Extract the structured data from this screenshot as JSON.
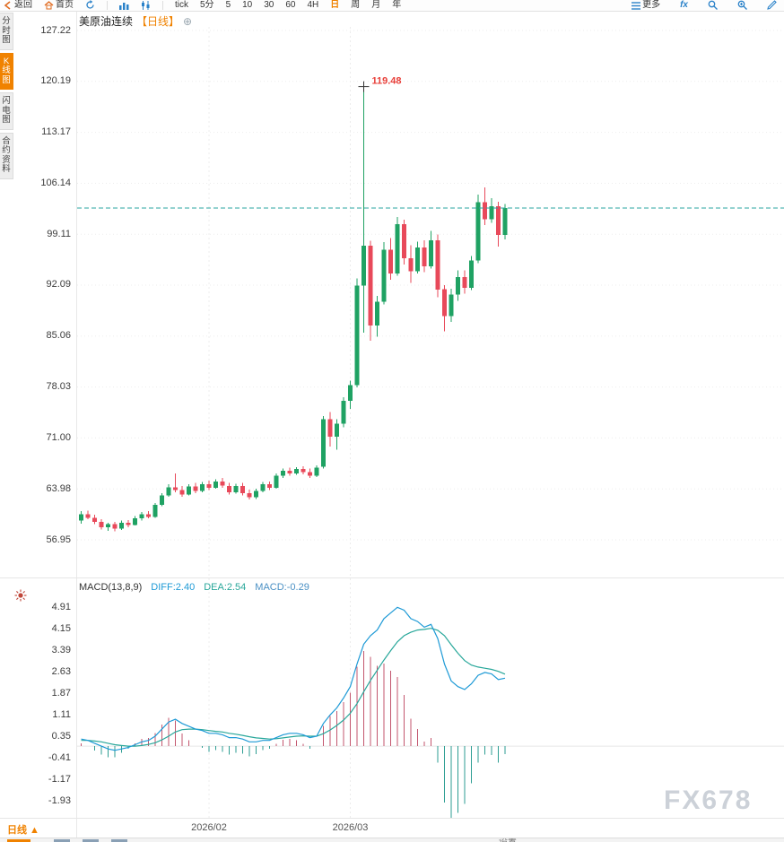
{
  "toolbar": {
    "items": [
      {
        "id": "back",
        "icon": "back-icon",
        "label": "返回"
      },
      {
        "id": "home",
        "icon": "home-icon",
        "label": "首页"
      },
      {
        "id": "refresh",
        "icon": "refresh-icon",
        "label": "",
        "divider_after": true
      },
      {
        "id": "bar-chart",
        "icon": "bar-chart-icon",
        "label": ""
      },
      {
        "id": "candle-chart",
        "icon": "candle-chart-icon",
        "label": "",
        "divider_after": true
      },
      {
        "id": "tick",
        "label": "tick"
      },
      {
        "id": "min5",
        "label": "5分"
      },
      {
        "id": "m5",
        "label": "5"
      },
      {
        "id": "m10",
        "label": "10"
      },
      {
        "id": "m30",
        "label": "30"
      },
      {
        "id": "m60",
        "label": "60"
      },
      {
        "id": "h4",
        "label": "4H"
      },
      {
        "id": "day",
        "label": "日",
        "active": true
      },
      {
        "id": "week",
        "label": "周"
      },
      {
        "id": "month",
        "label": "月"
      },
      {
        "id": "year",
        "label": "年"
      },
      {
        "id": "more",
        "icon": "menu-icon",
        "label": "更多"
      },
      {
        "id": "fx",
        "label": "fx"
      },
      {
        "id": "search",
        "icon": "search-icon",
        "label": ""
      },
      {
        "id": "zoom",
        "icon": "zoom-icon",
        "label": ""
      },
      {
        "id": "draw",
        "icon": "pen-icon",
        "label": ""
      }
    ]
  },
  "sidebar": {
    "items": [
      {
        "id": "time-chart",
        "label": "分时图",
        "active": false
      },
      {
        "id": "kline-chart",
        "label": "K线图",
        "active": true
      },
      {
        "id": "flash-chart",
        "label": "闪电图",
        "active": false
      },
      {
        "id": "contract-info",
        "label": "合约资料",
        "active": false
      }
    ]
  },
  "chart_data": {
    "type": "candlestick",
    "title": "美原油连续",
    "period_tag": "【日线】",
    "y_ticks": [
      "127.22",
      "120.19",
      "113.17",
      "106.14",
      "99.11",
      "92.09",
      "85.06",
      "78.03",
      "71.00",
      "63.98",
      "56.95"
    ],
    "x_labels": [
      {
        "text": "2026/02",
        "index": 19
      },
      {
        "text": "2026/03",
        "index": 40
      }
    ],
    "current_price_line": 102.72,
    "high_annotation": {
      "text": "119.48",
      "index": 42
    },
    "candles_ohlc": [
      [
        59.6,
        60.9,
        59.2,
        60.5
      ],
      [
        60.5,
        61.0,
        59.8,
        60.0
      ],
      [
        60.0,
        60.4,
        59.1,
        59.4
      ],
      [
        59.4,
        59.8,
        58.4,
        58.7
      ],
      [
        58.7,
        59.3,
        58.2,
        59.1
      ],
      [
        59.1,
        59.4,
        58.1,
        58.5
      ],
      [
        58.5,
        59.6,
        58.3,
        59.3
      ],
      [
        59.3,
        59.7,
        58.7,
        59.0
      ],
      [
        59.0,
        60.2,
        58.9,
        59.9
      ],
      [
        59.9,
        60.8,
        59.6,
        60.5
      ],
      [
        60.5,
        60.9,
        59.9,
        60.1
      ],
      [
        60.1,
        62.0,
        60.0,
        61.8
      ],
      [
        61.8,
        63.4,
        61.6,
        63.1
      ],
      [
        63.1,
        64.6,
        62.9,
        64.2
      ],
      [
        64.2,
        66.1,
        63.5,
        63.8
      ],
      [
        63.8,
        64.4,
        62.9,
        63.2
      ],
      [
        63.2,
        64.6,
        63.1,
        64.3
      ],
      [
        64.3,
        64.8,
        63.4,
        63.7
      ],
      [
        63.7,
        64.9,
        63.5,
        64.6
      ],
      [
        64.6,
        65.1,
        63.8,
        64.1
      ],
      [
        64.1,
        65.3,
        64.0,
        65.0
      ],
      [
        65.0,
        65.5,
        64.1,
        64.4
      ],
      [
        64.4,
        64.8,
        63.2,
        63.5
      ],
      [
        63.5,
        64.7,
        63.3,
        64.4
      ],
      [
        64.4,
        64.8,
        63.1,
        63.4
      ],
      [
        63.4,
        63.9,
        62.5,
        62.8
      ],
      [
        62.8,
        64.0,
        62.6,
        63.7
      ],
      [
        63.7,
        64.9,
        63.5,
        64.6
      ],
      [
        64.6,
        65.0,
        63.8,
        64.1
      ],
      [
        64.1,
        66.1,
        64.0,
        65.8
      ],
      [
        65.8,
        66.8,
        65.5,
        66.5
      ],
      [
        66.5,
        66.9,
        65.8,
        66.1
      ],
      [
        66.1,
        67.0,
        65.9,
        66.7
      ],
      [
        66.7,
        67.1,
        66.0,
        66.3
      ],
      [
        66.3,
        66.8,
        65.5,
        65.8
      ],
      [
        65.8,
        67.2,
        65.6,
        66.9
      ],
      [
        67.0,
        74.0,
        66.8,
        73.6
      ],
      [
        73.6,
        74.6,
        69.8,
        71.2
      ],
      [
        71.2,
        73.6,
        69.4,
        73.0
      ],
      [
        73.0,
        76.6,
        72.5,
        76.1
      ],
      [
        76.1,
        78.9,
        75.0,
        78.3
      ],
      [
        78.3,
        93.0,
        78.0,
        92.0
      ],
      [
        92.0,
        119.48,
        85.5,
        97.5
      ],
      [
        97.5,
        98.2,
        84.4,
        86.5
      ],
      [
        86.5,
        90.6,
        85.0,
        89.8
      ],
      [
        89.8,
        98.0,
        89.4,
        97.0
      ],
      [
        97.0,
        98.6,
        92.8,
        93.7
      ],
      [
        93.7,
        101.5,
        93.4,
        100.5
      ],
      [
        100.5,
        101.1,
        94.9,
        95.8
      ],
      [
        95.8,
        97.6,
        92.4,
        94.0
      ],
      [
        94.0,
        98.1,
        93.7,
        97.3
      ],
      [
        97.3,
        98.3,
        93.9,
        94.7
      ],
      [
        94.7,
        99.6,
        94.4,
        98.3
      ],
      [
        98.3,
        99.1,
        90.4,
        91.5
      ],
      [
        91.5,
        92.1,
        85.7,
        87.8
      ],
      [
        87.8,
        91.6,
        87.0,
        90.8
      ],
      [
        90.8,
        94.1,
        89.9,
        93.2
      ],
      [
        93.2,
        94.1,
        90.9,
        91.7
      ],
      [
        91.7,
        96.1,
        91.4,
        95.5
      ],
      [
        95.5,
        104.6,
        95.1,
        103.5
      ],
      [
        103.5,
        105.6,
        100.4,
        101.2
      ],
      [
        101.2,
        104.1,
        100.7,
        103.0
      ],
      [
        103.0,
        103.6,
        97.4,
        99.0
      ],
      [
        99.0,
        103.3,
        98.4,
        102.7
      ]
    ],
    "macd": {
      "label": "MACD(13,8,9)",
      "diff_label": "DIFF:2.40",
      "dea_label": "DEA:2.54",
      "macd_label": "MACD:-0.29",
      "y_ticks": [
        "4.91",
        "4.15",
        "3.39",
        "2.63",
        "1.87",
        "1.11",
        "0.35",
        "-0.41",
        "-1.17",
        "-1.93"
      ],
      "diff": [
        0.25,
        0.2,
        0.1,
        0.0,
        -0.1,
        -0.15,
        -0.1,
        -0.05,
        0.05,
        0.15,
        0.2,
        0.35,
        0.6,
        0.85,
        0.95,
        0.8,
        0.7,
        0.6,
        0.55,
        0.45,
        0.45,
        0.4,
        0.3,
        0.3,
        0.25,
        0.15,
        0.15,
        0.2,
        0.2,
        0.3,
        0.4,
        0.45,
        0.45,
        0.4,
        0.3,
        0.35,
        0.8,
        1.1,
        1.35,
        1.7,
        2.1,
        2.9,
        3.6,
        3.9,
        4.1,
        4.5,
        4.7,
        4.9,
        4.8,
        4.5,
        4.4,
        4.2,
        4.3,
        3.8,
        2.9,
        2.3,
        2.1,
        2.0,
        2.2,
        2.5,
        2.6,
        2.55,
        2.35,
        2.4
      ],
      "dea": [
        0.2,
        0.2,
        0.18,
        0.15,
        0.1,
        0.05,
        0.02,
        0.0,
        0.0,
        0.02,
        0.06,
        0.12,
        0.22,
        0.35,
        0.5,
        0.58,
        0.6,
        0.6,
        0.58,
        0.55,
        0.52,
        0.5,
        0.45,
        0.42,
        0.38,
        0.33,
        0.29,
        0.27,
        0.25,
        0.26,
        0.29,
        0.32,
        0.35,
        0.36,
        0.35,
        0.35,
        0.44,
        0.57,
        0.73,
        0.92,
        1.16,
        1.5,
        1.92,
        2.32,
        2.68,
        3.04,
        3.37,
        3.68,
        3.9,
        4.02,
        4.1,
        4.12,
        4.16,
        4.09,
        3.9,
        3.58,
        3.28,
        3.02,
        2.86,
        2.79,
        2.75,
        2.71,
        2.64,
        2.54
      ]
    }
  },
  "colors": {
    "up": "#1fa263",
    "down": "#e8495a",
    "diff_line": "#1e9ad6",
    "dea_line": "#28a79a",
    "hist_pos": "#c3566e",
    "hist_neg": "#2e9e93",
    "accent": "#f08200",
    "price_line": "#2aa6a0",
    "annotation": "#e8403a"
  },
  "bottom": {
    "period_tab": "日线 ▲",
    "settings_label": "设置"
  },
  "watermark": "FX678"
}
